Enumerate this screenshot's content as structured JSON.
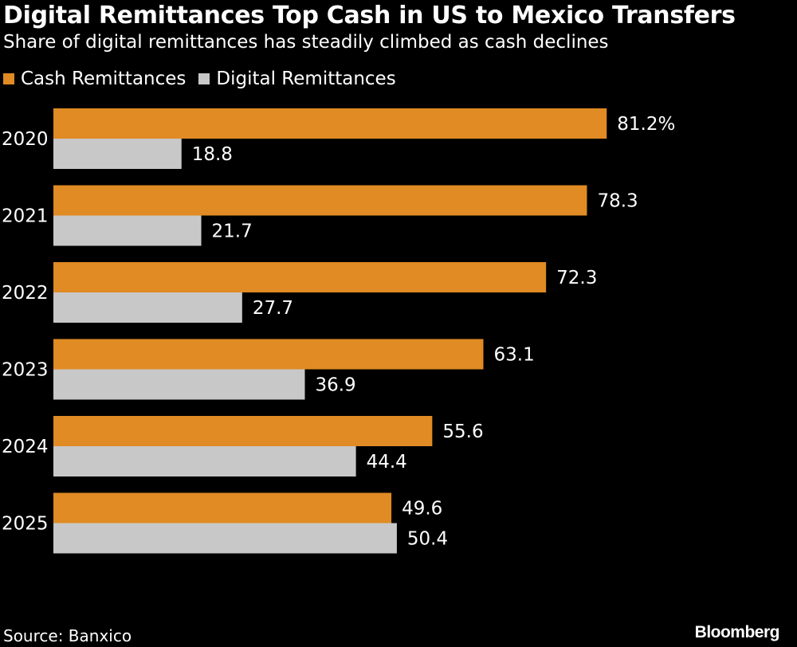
{
  "header": {
    "title": "Digital Remittances Top Cash in US to Mexico Transfers",
    "subtitle": "Share of digital remittances has steadily climbed as cash declines"
  },
  "legend": [
    {
      "label": "Cash Remittances",
      "color": "#E08B24"
    },
    {
      "label": "Digital Remittances",
      "color": "#C8C8C8"
    }
  ],
  "chart_data": {
    "type": "bar",
    "orientation": "horizontal",
    "title": "Digital Remittances Top Cash in US to Mexico Transfers",
    "subtitle": "Share of digital remittances has steadily climbed as cash declines",
    "categories": [
      "2020",
      "2021",
      "2022",
      "2023",
      "2024",
      "2025"
    ],
    "series": [
      {
        "name": "Cash Remittances",
        "color": "#E08B24",
        "values": [
          81.2,
          78.3,
          72.3,
          63.1,
          55.6,
          49.6
        ],
        "labels": [
          "81.2%",
          "78.3",
          "72.3",
          "63.1",
          "55.6",
          "49.6"
        ]
      },
      {
        "name": "Digital Remittances",
        "color": "#C8C8C8",
        "values": [
          18.8,
          21.7,
          27.7,
          36.9,
          44.4,
          50.4
        ],
        "labels": [
          "18.8",
          "21.7",
          "27.7",
          "36.9",
          "44.4",
          "50.4"
        ]
      }
    ],
    "xlim": [
      0,
      100
    ],
    "legend_position": "top-left",
    "grid": false
  },
  "footer": {
    "source": "Source: Banxico",
    "brand": "Bloomberg"
  }
}
